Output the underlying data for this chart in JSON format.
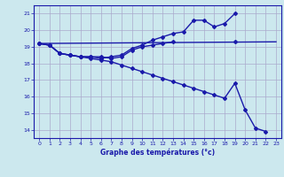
{
  "bg_color": "#cce8ee",
  "grid_color": "#aaaacc",
  "line_color": "#1a1aaa",
  "xlabel": "Graphe des températures (°c)",
  "xlim": [
    -0.5,
    23.5
  ],
  "ylim": [
    13.5,
    21.5
  ],
  "yticks": [
    14,
    15,
    16,
    17,
    18,
    19,
    20,
    21
  ],
  "xticks": [
    0,
    1,
    2,
    3,
    4,
    5,
    6,
    7,
    8,
    9,
    10,
    11,
    12,
    13,
    14,
    15,
    16,
    17,
    18,
    19,
    20,
    21,
    22,
    23
  ],
  "series": [
    {
      "x": [
        0,
        1,
        2,
        3,
        4,
        5,
        6,
        7,
        8,
        9,
        10,
        11,
        12,
        13,
        14,
        15,
        16,
        17,
        18,
        19,
        20,
        21,
        22,
        23
      ],
      "y": [
        19.2,
        19.1,
        18.6,
        18.5,
        18.4,
        18.4,
        18.3,
        18.4,
        18.5,
        18.9,
        19.1,
        19.4,
        19.6,
        19.8,
        19.9,
        20.6,
        20.6,
        20.2,
        20.4,
        21.0,
        null,
        null,
        null,
        null
      ],
      "marker": "D",
      "markersize": 2.0,
      "linewidth": 1.0,
      "has_markers": true
    },
    {
      "x": [
        0,
        23
      ],
      "y": [
        19.2,
        19.3
      ],
      "marker": null,
      "markersize": 0,
      "linewidth": 1.0,
      "has_markers": false
    },
    {
      "x": [
        0,
        1,
        2,
        3,
        4,
        5,
        6,
        7,
        8,
        9,
        10,
        11,
        12,
        13,
        14,
        15,
        16,
        17,
        18,
        19,
        20,
        21,
        22,
        23
      ],
      "y": [
        19.2,
        19.1,
        18.6,
        18.5,
        18.4,
        18.4,
        18.4,
        18.3,
        18.4,
        18.8,
        19.0,
        19.1,
        19.2,
        19.3,
        null,
        null,
        null,
        null,
        null,
        19.3,
        null,
        null,
        null,
        null
      ],
      "marker": "D",
      "markersize": 2.0,
      "linewidth": 1.0,
      "has_markers": true
    },
    {
      "x": [
        0,
        1,
        2,
        3,
        4,
        5,
        6,
        7,
        8,
        9,
        10,
        11,
        12,
        13,
        14,
        15,
        16,
        17,
        18,
        19,
        20,
        21,
        22,
        23
      ],
      "y": [
        19.2,
        19.1,
        18.6,
        18.5,
        18.4,
        18.3,
        18.2,
        18.1,
        17.9,
        17.7,
        17.5,
        17.3,
        17.1,
        16.9,
        16.7,
        16.5,
        16.3,
        16.1,
        15.9,
        16.8,
        15.2,
        14.1,
        13.9,
        null
      ],
      "marker": "D",
      "markersize": 2.0,
      "linewidth": 1.0,
      "has_markers": true
    }
  ]
}
